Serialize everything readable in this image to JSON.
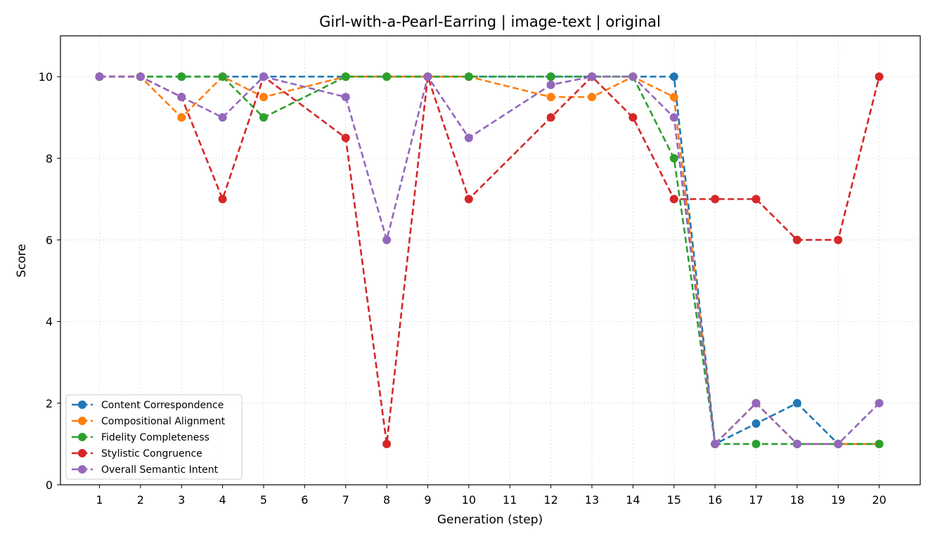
{
  "chart_data": {
    "type": "line",
    "title": "Girl-with-a-Pearl-Earring | image-text | original",
    "xlabel": "Generation (step)",
    "ylabel": "Score",
    "x": [
      1,
      2,
      3,
      4,
      5,
      6,
      7,
      8,
      9,
      10,
      11,
      12,
      13,
      14,
      15,
      16,
      17,
      18,
      19,
      20
    ],
    "xlim": [
      0.05,
      21.0
    ],
    "ylim": [
      0,
      11
    ],
    "yticks": [
      0,
      2,
      4,
      6,
      8,
      10
    ],
    "grid": true,
    "legend_position": "lower-left",
    "series": [
      {
        "name": "Content Correspondence",
        "color": "#1f77b4",
        "points": [
          [
            1,
            10
          ],
          [
            2,
            10
          ],
          [
            3,
            10
          ],
          [
            4,
            10
          ],
          [
            5,
            10
          ],
          [
            7,
            10
          ],
          [
            8,
            10
          ],
          [
            9,
            10
          ],
          [
            10,
            10
          ],
          [
            12,
            10
          ],
          [
            13,
            10
          ],
          [
            14,
            10
          ],
          [
            15,
            10
          ],
          [
            16,
            1
          ],
          [
            17,
            1.5
          ],
          [
            18,
            2
          ],
          [
            19,
            1
          ],
          [
            20,
            1
          ]
        ]
      },
      {
        "name": "Compositional Alignment",
        "color": "#ff7f0e",
        "points": [
          [
            1,
            10
          ],
          [
            2,
            10
          ],
          [
            3,
            9
          ],
          [
            4,
            10
          ],
          [
            5,
            9.5
          ],
          [
            7,
            10
          ],
          [
            8,
            10
          ],
          [
            9,
            10
          ],
          [
            10,
            10
          ],
          [
            12,
            9.5
          ],
          [
            13,
            9.5
          ],
          [
            14,
            10
          ],
          [
            15,
            9.5
          ],
          [
            16,
            1
          ],
          [
            17,
            2
          ],
          [
            18,
            1
          ],
          [
            19,
            1
          ],
          [
            20,
            1
          ]
        ]
      },
      {
        "name": "Fidelity Completeness",
        "color": "#2ca02c",
        "points": [
          [
            1,
            10
          ],
          [
            2,
            10
          ],
          [
            3,
            10
          ],
          [
            4,
            10
          ],
          [
            5,
            9
          ],
          [
            7,
            10
          ],
          [
            8,
            10
          ],
          [
            9,
            10
          ],
          [
            10,
            10
          ],
          [
            12,
            10
          ],
          [
            13,
            10
          ],
          [
            14,
            10
          ],
          [
            15,
            8
          ],
          [
            16,
            1
          ],
          [
            17,
            1
          ],
          [
            18,
            1
          ],
          [
            19,
            1
          ],
          [
            20,
            1
          ]
        ]
      },
      {
        "name": "Stylistic Congruence",
        "color": "#d62728",
        "points": [
          [
            1,
            10
          ],
          [
            2,
            10
          ],
          [
            3,
            9.5
          ],
          [
            4,
            7
          ],
          [
            5,
            10
          ],
          [
            7,
            8.5
          ],
          [
            8,
            1
          ],
          [
            9,
            10
          ],
          [
            10,
            7
          ],
          [
            12,
            9
          ],
          [
            13,
            10
          ],
          [
            14,
            9
          ],
          [
            15,
            7
          ],
          [
            16,
            7
          ],
          [
            17,
            7
          ],
          [
            18,
            6
          ],
          [
            19,
            6
          ],
          [
            20,
            10
          ]
        ]
      },
      {
        "name": "Overall Semantic Intent",
        "color": "#9467bd",
        "points": [
          [
            1,
            10
          ],
          [
            2,
            10
          ],
          [
            3,
            9.5
          ],
          [
            4,
            9
          ],
          [
            5,
            10
          ],
          [
            7,
            9.5
          ],
          [
            8,
            6
          ],
          [
            9,
            10
          ],
          [
            10,
            8.5
          ],
          [
            12,
            9.8
          ],
          [
            13,
            10
          ],
          [
            14,
            10
          ],
          [
            15,
            9
          ],
          [
            16,
            1
          ],
          [
            17,
            2
          ],
          [
            18,
            1
          ],
          [
            19,
            1
          ],
          [
            20,
            2
          ]
        ]
      }
    ]
  }
}
